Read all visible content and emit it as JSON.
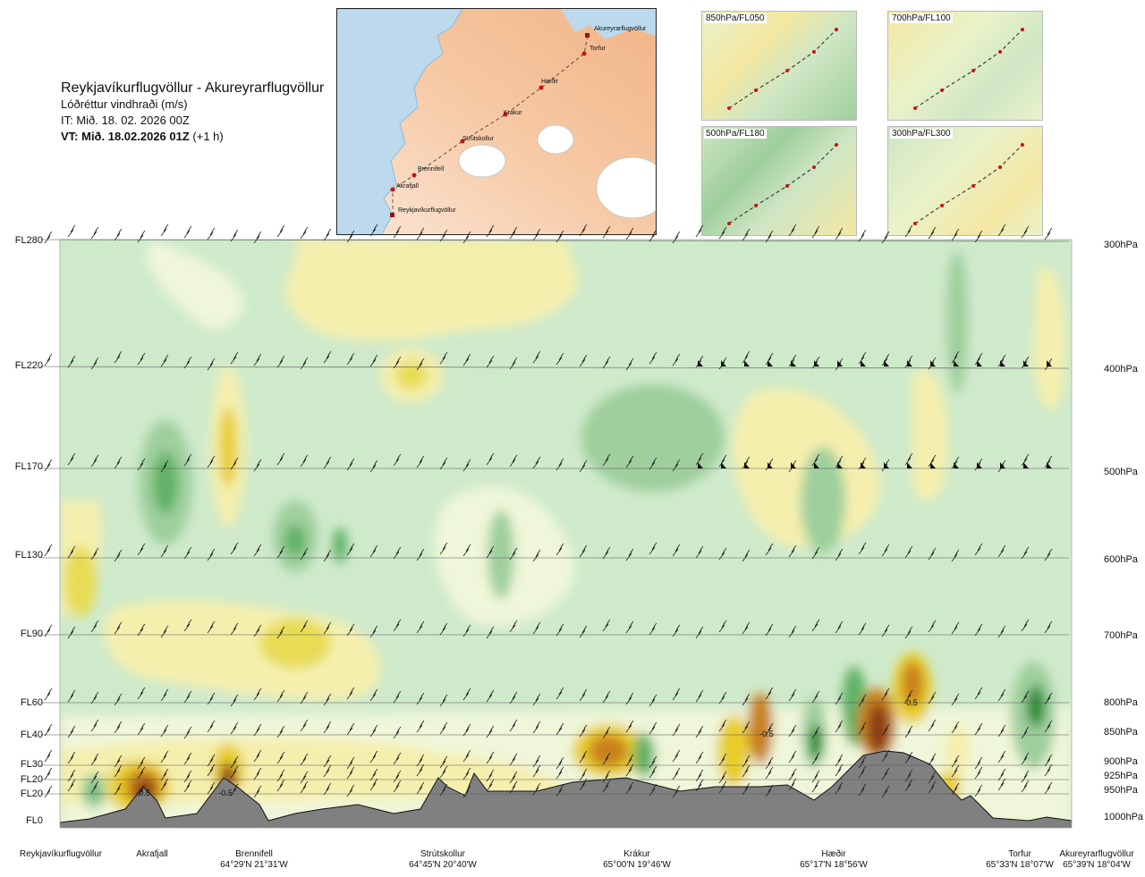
{
  "header": {
    "title": "Reykjavíkurflugvöllur - Akureyrarflugvöllur",
    "variable": "Lóðréttur vindhraði (m/s)",
    "issue_time": "IT: Mið. 18. 02. 2026 00Z",
    "valid_time_bold": "VT: Mið. 18.02.2026 01Z",
    "valid_time_rest": "(+1 h)"
  },
  "map": {
    "points": [
      {
        "name": "Akureyrarflugvöllur"
      },
      {
        "name": "Torfur"
      },
      {
        "name": "Hæðir"
      },
      {
        "name": "Krákur"
      },
      {
        "name": "Strútskollur"
      },
      {
        "name": "Brennifell"
      },
      {
        "name": "Akrafjall"
      },
      {
        "name": "Reykjavíkurflugvöllur"
      }
    ]
  },
  "panels": [
    {
      "label": "850hPa/FL050"
    },
    {
      "label": "700hPa/FL100"
    },
    {
      "label": "500hPa/FL180"
    },
    {
      "label": "300hPa/FL300"
    }
  ],
  "chart_data": {
    "type": "heatmap",
    "title": "Lóðréttur vindhraði (m/s)",
    "left_levels": [
      "FL280",
      "FL220",
      "FL170",
      "FL130",
      "FL90",
      "FL60",
      "FL40",
      "FL30",
      "FL20",
      "FL20",
      "FL0"
    ],
    "right_levels": [
      "300hPa",
      "400hPa",
      "500hPa",
      "600hPa",
      "700hPa",
      "800hPa",
      "850hPa",
      "900hPa",
      "925hPa",
      "950hPa",
      "1000hPa"
    ],
    "pressure_hPa": [
      300,
      400,
      500,
      600,
      700,
      800,
      850,
      900,
      925,
      950,
      1000
    ],
    "ylim_hPa": [
      1000,
      300
    ],
    "contour_labels": [
      "-0.5",
      "-0.5",
      "-0.5",
      "-0.5"
    ],
    "waypoints": [
      {
        "name": "Reykjavíkurflugvöllur",
        "coord": ""
      },
      {
        "name": "Akrafjall",
        "coord": ""
      },
      {
        "name": "Brennifell",
        "coord": "64°29'N 21°31'W"
      },
      {
        "name": "Strútskollur",
        "coord": "64°45'N 20°40'W"
      },
      {
        "name": "Krákur",
        "coord": "65°00'N 19°46'W"
      },
      {
        "name": "Hæðir",
        "coord": "65°17'N 18°56'W"
      },
      {
        "name": "Torfur",
        "coord": "65°33'N 18°07'W"
      },
      {
        "name": "Akureyrarflugvöllur",
        "coord": "65°39'N 18°04'W"
      }
    ]
  }
}
